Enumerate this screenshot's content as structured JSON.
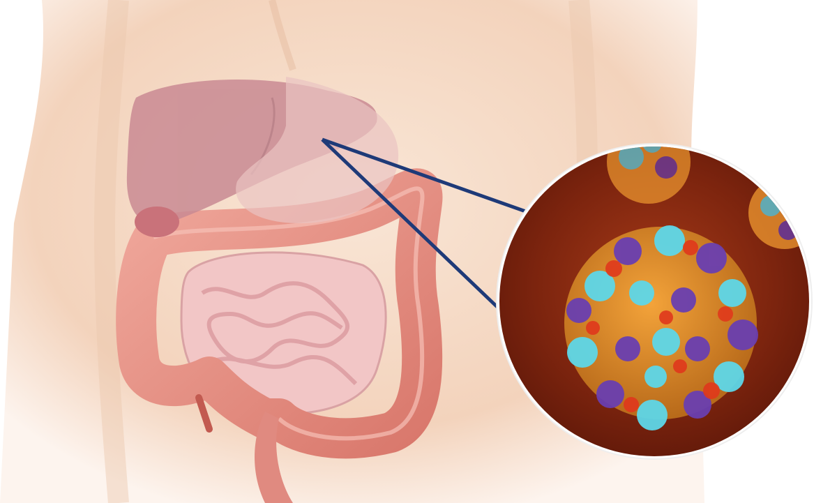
{
  "illustration": {
    "subject": "human-abdomen-digestive-system",
    "organs": [
      "liver",
      "stomach",
      "gallbladder",
      "large-intestine",
      "small-intestine",
      "rectum",
      "appendix"
    ],
    "magnifier": {
      "subject": "virus-particle",
      "background_color": "#8a2a10"
    },
    "colors": {
      "skin": "#f6dcc8",
      "skin_shadow": "#e9c0a4",
      "liver": "#c98a93",
      "large_intestine": "#e89a90",
      "small_intestine": "#f2c6c6",
      "pointer_line": "#1e3a78",
      "virus_cyan": "#5ed7e8",
      "virus_orange": "#f08a1e",
      "virus_purple": "#6a3fb0",
      "virus_red": "#e0381c"
    }
  }
}
